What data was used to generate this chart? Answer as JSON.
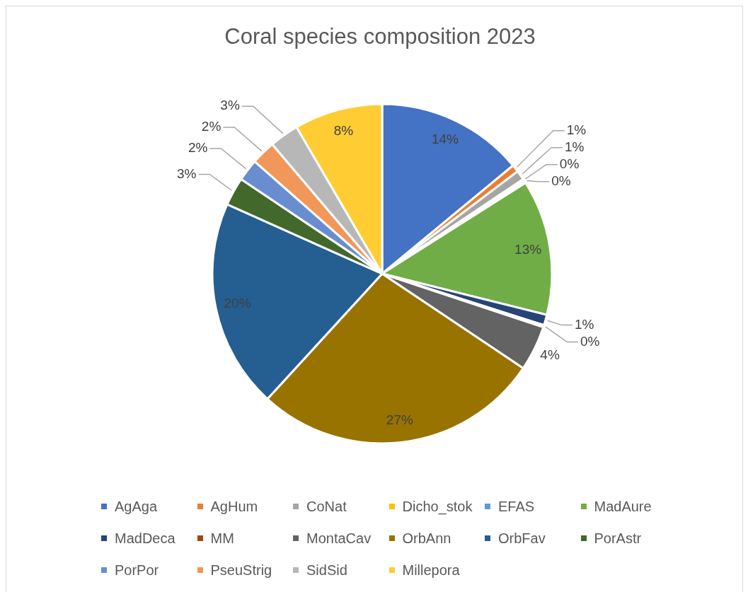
{
  "chart_data": {
    "type": "pie",
    "title": "Coral species composition 2023",
    "categories": [
      "AgAga",
      "AgHum",
      "CoNat",
      "Dicho_stok",
      "EFAS",
      "MadAure",
      "MadDeca",
      "MM",
      "MontaCav",
      "OrbAnn",
      "OrbFav",
      "PorAstr",
      "PorPor",
      "PseuStrig",
      "SidSid",
      "Millepora"
    ],
    "values": [
      14.0,
      0.7,
      0.9,
      0.2,
      0.2,
      12.9,
      1.0,
      0.2,
      4.3,
      27.4,
      19.9,
      2.7,
      2.1,
      2.3,
      2.8,
      8.4
    ],
    "colors": [
      "#4472c4",
      "#ed7d31",
      "#a5a5a5",
      "#ffc000",
      "#5b9bd5",
      "#70ad47",
      "#264478",
      "#9e480e",
      "#636363",
      "#997300",
      "#255e91",
      "#43682b",
      "#698ed0",
      "#f1975a",
      "#b7b7b7",
      "#ffcd33"
    ],
    "value_labels": [
      "14%",
      "1%",
      "1%",
      "0%",
      "0%",
      "13%",
      "1%",
      "0%",
      "4%",
      "27%",
      "20%",
      "3%",
      "2%",
      "2%",
      "3%",
      "8%"
    ],
    "legend": "bottom"
  }
}
